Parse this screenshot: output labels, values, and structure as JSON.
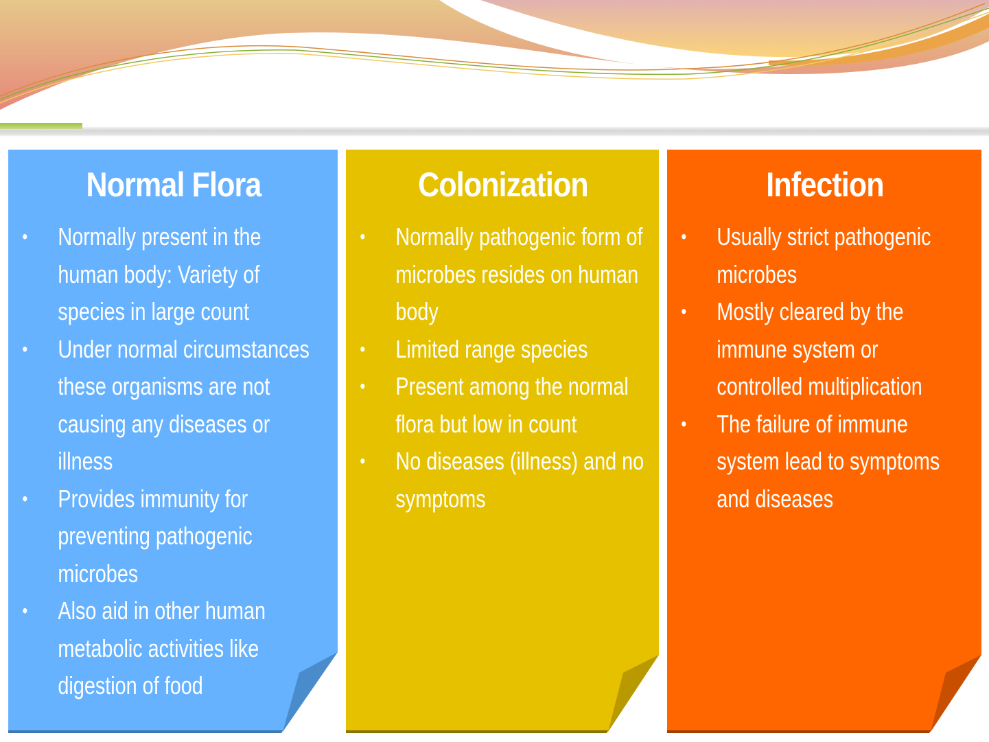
{
  "colors": {
    "normal_flora": "#66b2ff",
    "colonization": "#e5c100",
    "infection": "#ff6600"
  },
  "panels": [
    {
      "title": "Normal Flora",
      "items": [
        "Normally present in the human body: Variety of species in large count",
        "Under normal circumstances these organisms are not causing any diseases or illness",
        "Provides immunity for preventing pathogenic microbes",
        "Also aid in other human metabolic activities like digestion of food"
      ]
    },
    {
      "title": "Colonization",
      "items": [
        "Normally pathogenic form of microbes resides on human body",
        "Limited range species",
        "Present among the normal flora but low in count",
        "No diseases (illness) and no symptoms"
      ]
    },
    {
      "title": "Infection",
      "items": [
        "Usually strict pathogenic microbes",
        "Mostly cleared by the immune system or controlled multiplication",
        "The failure of immune system lead to symptoms and diseases"
      ]
    }
  ],
  "bullet": "•"
}
